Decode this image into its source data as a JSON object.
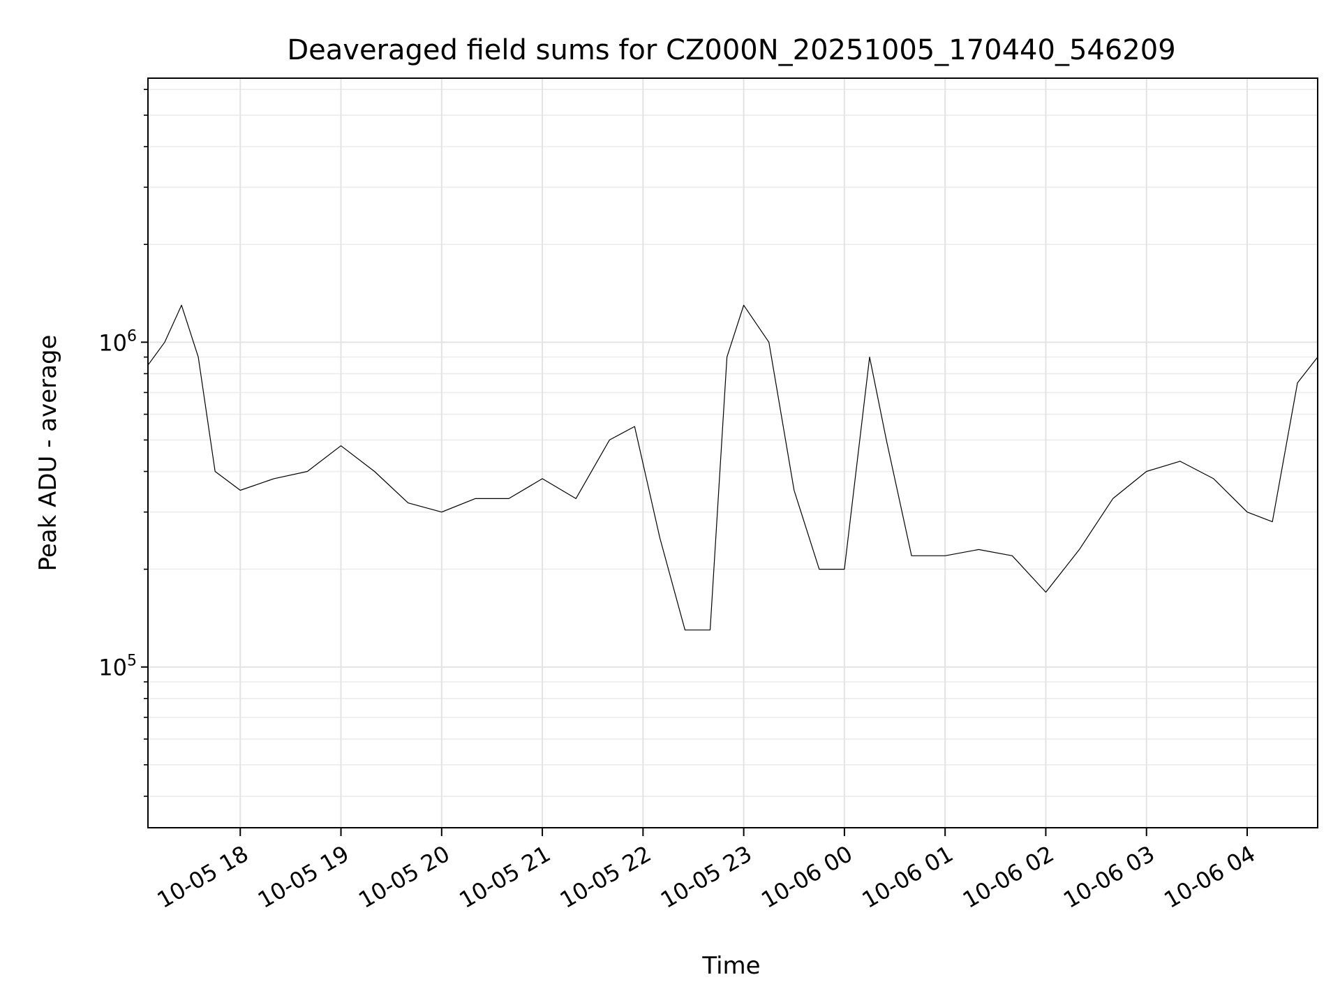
{
  "chart_data": {
    "type": "line",
    "title": "Deaveraged field sums for CZ000N_20251005_170440_546209",
    "xlabel": "Time",
    "ylabel": "Peak ADU - average",
    "yscale": "log",
    "xlim": [
      "2025-10-05 17:05",
      "2025-10-06 04:42"
    ],
    "ylim": [
      32000,
      6500000
    ],
    "grid": true,
    "x_ticks": [
      "10-05 18",
      "10-05 19",
      "10-05 20",
      "10-05 21",
      "10-05 22",
      "10-05 23",
      "10-06 00",
      "10-06 01",
      "10-06 02",
      "10-06 03",
      "10-06 04"
    ],
    "y_ticks": [
      {
        "base": "10",
        "exp": "5",
        "value": 100000
      },
      {
        "base": "10",
        "exp": "6",
        "value": 1000000
      }
    ],
    "series_color": "#000000",
    "series": [
      {
        "x": [
          "2025-10-05 17:05",
          "2025-10-05 17:15",
          "2025-10-05 17:25",
          "2025-10-05 17:35",
          "2025-10-05 17:45",
          "2025-10-05 18:00",
          "2025-10-05 18:20",
          "2025-10-05 18:40",
          "2025-10-05 19:00",
          "2025-10-05 19:20",
          "2025-10-05 19:40",
          "2025-10-05 20:00",
          "2025-10-05 20:20",
          "2025-10-05 20:40",
          "2025-10-05 21:00",
          "2025-10-05 21:20",
          "2025-10-05 21:40",
          "2025-10-05 21:55",
          "2025-10-05 22:10",
          "2025-10-05 22:25",
          "2025-10-05 22:40",
          "2025-10-05 22:50",
          "2025-10-05 23:00",
          "2025-10-05 23:15",
          "2025-10-05 23:30",
          "2025-10-05 23:45",
          "2025-10-06 00:00",
          "2025-10-06 00:15",
          "2025-10-06 00:25",
          "2025-10-06 00:40",
          "2025-10-06 01:00",
          "2025-10-06 01:20",
          "2025-10-06 01:40",
          "2025-10-06 02:00",
          "2025-10-06 02:20",
          "2025-10-06 02:40",
          "2025-10-06 03:00",
          "2025-10-06 03:20",
          "2025-10-06 03:40",
          "2025-10-06 04:00",
          "2025-10-06 04:15",
          "2025-10-06 04:30",
          "2025-10-06 04:42"
        ],
        "y": [
          850000,
          1000000,
          1300000,
          900000,
          400000,
          350000,
          380000,
          400000,
          480000,
          400000,
          320000,
          300000,
          330000,
          330000,
          380000,
          330000,
          500000,
          550000,
          250000,
          130000,
          130000,
          900000,
          1300000,
          1000000,
          350000,
          200000,
          200000,
          900000,
          500000,
          220000,
          220000,
          230000,
          220000,
          170000,
          230000,
          330000,
          400000,
          430000,
          380000,
          300000,
          280000,
          750000,
          900000
        ]
      }
    ]
  }
}
